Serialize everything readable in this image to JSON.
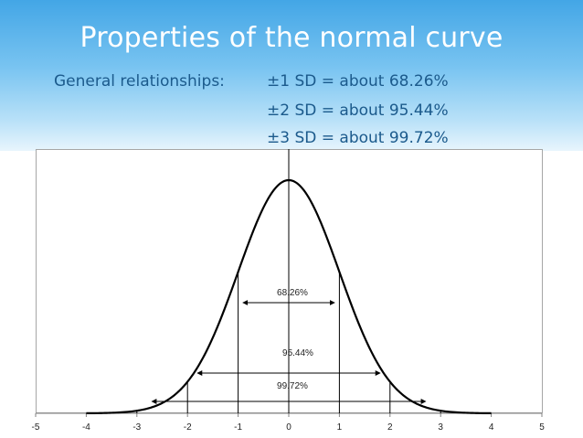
{
  "slide": {
    "title": "Properties of the normal curve",
    "relationships_label": "General relationships:",
    "relationships": [
      "±1 SD = about 68.26%",
      "±2 SD = about 95.44%",
      "±3 SD = about 99.72%"
    ]
  },
  "colors": {
    "header_top": "#43a6e6",
    "header_bottom": "#e8f5fd",
    "title_text": "#ffffff",
    "body_text": "#1b5a8c",
    "curve": "#000000"
  },
  "chart_data": {
    "type": "line",
    "title": "",
    "xlabel": "",
    "ylabel": "",
    "xlim": [
      -5,
      5
    ],
    "x_ticks": [
      -5,
      -4,
      -3,
      -2,
      -1,
      0,
      1,
      2,
      3,
      4,
      5
    ],
    "series": [
      {
        "curve": "standard normal density",
        "mean": 0,
        "sd": 1,
        "x_range": [
          -4,
          4
        ]
      }
    ],
    "sd_lines": [
      -3,
      -2,
      -1,
      1,
      2,
      3
    ],
    "annotations": [
      {
        "text": "68.26%",
        "range": [
          -1,
          1
        ]
      },
      {
        "text": "95.44%",
        "range": [
          -2,
          2
        ]
      },
      {
        "text": "99.72%",
        "range": [
          -3,
          3
        ]
      }
    ],
    "grid": false,
    "legend": "none"
  }
}
